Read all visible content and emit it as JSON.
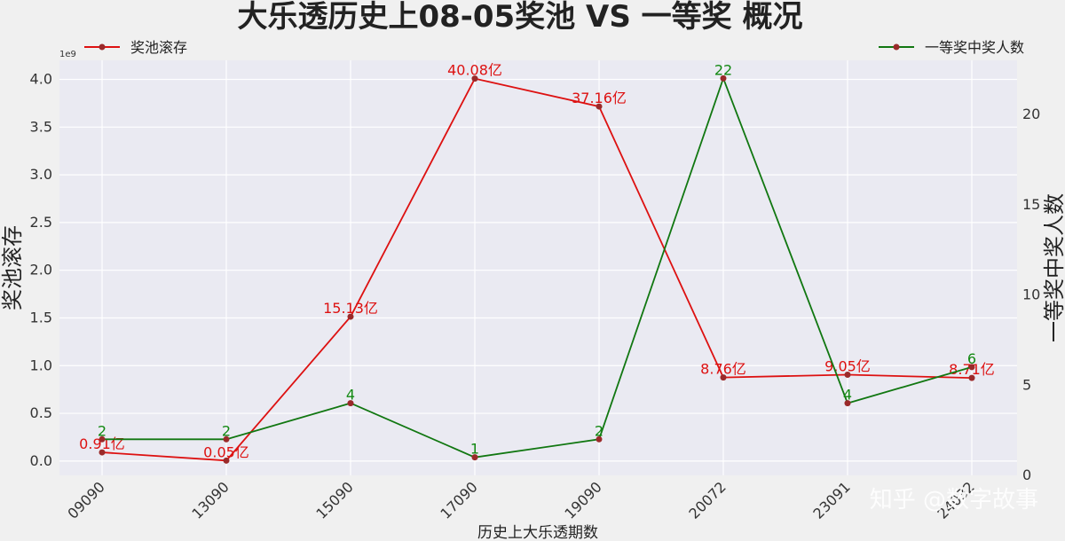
{
  "watermark": "知乎 @数字故事",
  "chart_data": {
    "type": "line",
    "title": "大乐透历史上08-05奖池 VS 一等奖 概况",
    "xlabel": "历史上大乐透期数",
    "ylabel_left": "奖池滚存",
    "ylabel_right": "一等奖中奖人数",
    "left_axis_exponent": "1e9",
    "categories": [
      "09090",
      "13090",
      "15090",
      "17090",
      "19090",
      "20072",
      "23091",
      "24032"
    ],
    "ylim_left": [
      -0.15,
      4.2
    ],
    "ylim_right": [
      0,
      23
    ],
    "yticks_left": [
      "0.0",
      "0.5",
      "1.0",
      "1.5",
      "2.0",
      "2.5",
      "3.0",
      "3.5",
      "4.0"
    ],
    "yticks_right": [
      "0",
      "5",
      "10",
      "15",
      "20"
    ],
    "grid": true,
    "series": [
      {
        "name": "奖池滚存",
        "axis": "left",
        "color": "#dd1111",
        "legend_position": "top-left",
        "values": [
          0.091,
          0.005,
          1.513,
          4.008,
          3.716,
          0.876,
          0.905,
          0.871
        ],
        "labels": [
          "0.91亿",
          "0.05亿",
          "15.13亿",
          "40.08亿",
          "37.16亿",
          "8.76亿",
          "9.05亿",
          "8.71亿"
        ]
      },
      {
        "name": "一等奖中奖人数",
        "axis": "right",
        "color": "#117711",
        "legend_position": "top-right",
        "values": [
          2,
          2,
          4,
          1,
          2,
          22,
          4,
          6
        ],
        "labels": [
          "2",
          "2",
          "4",
          "1",
          "2",
          "22",
          "4",
          "6"
        ]
      }
    ]
  }
}
